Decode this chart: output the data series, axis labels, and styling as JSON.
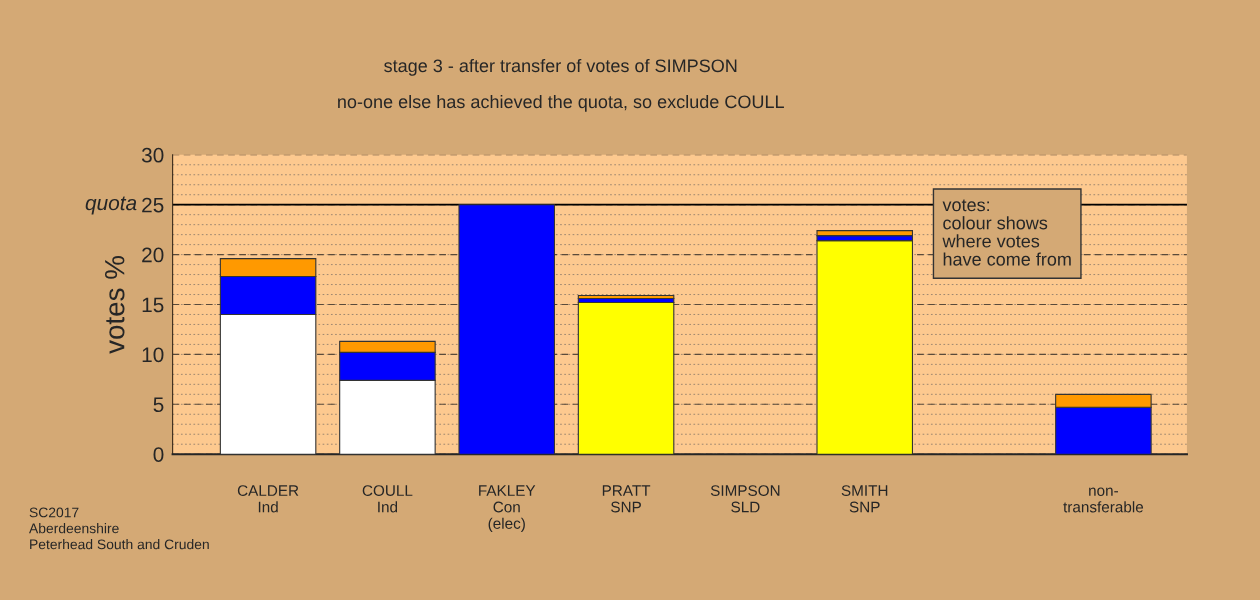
{
  "chart_data": {
    "type": "bar",
    "stacked": true,
    "title": "stage 3 - after transfer of votes of SIMPSON",
    "subtitle": "no-one else has achieved the quota, so exclude COULL",
    "ylabel": "votes %",
    "categories": [
      "CALDER\nInd",
      "COULL\nInd",
      "FAKLEY\nCon\n(elec)",
      "PRATT\nSNP",
      "SIMPSON\nSLD",
      "SMITH\nSNP",
      null,
      "non-\ntransferable"
    ],
    "series": [
      {
        "colors": [
          "#ffffff",
          "#ffffff",
          "#0000ff",
          "#ffff00",
          null,
          "#ffff00",
          null,
          "#0000ff"
        ],
        "values": [
          14.0,
          7.4,
          25.0,
          15.2,
          null,
          21.4,
          null,
          4.7
        ]
      },
      {
        "color": "#0000ff",
        "values": [
          3.8,
          2.8,
          null,
          0.4,
          null,
          0.5,
          null,
          null
        ]
      },
      {
        "color": "#ff9900",
        "values": [
          1.8,
          1.1,
          null,
          0.3,
          null,
          0.5,
          null,
          1.3
        ]
      }
    ],
    "ylim": [
      0,
      30
    ],
    "yticks": [
      0,
      5,
      10,
      15,
      20,
      25,
      30
    ],
    "grid": "y",
    "ref_lines": [
      {
        "axis": "y",
        "value": 25,
        "label": "quota",
        "color": "#000000",
        "line_style": "solid"
      }
    ],
    "annotations": [
      "votes:\ncolour shows\nwhere votes\nhave come from",
      "SC2017\nAberdeenshire\nPeterhead South and Cruden"
    ]
  }
}
